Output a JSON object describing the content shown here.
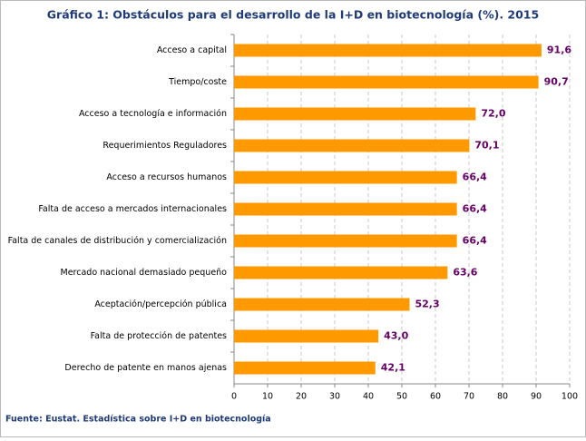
{
  "chart_data": {
    "type": "bar",
    "orientation": "horizontal",
    "title": "Gráfico 1: Obstáculos para el desarrollo de la I+D en biotecnología (%). 2015",
    "categories": [
      "Acceso a capital",
      "Tiempo/coste",
      "Acceso  a tecnología e información",
      "Requerimientos Reguladores",
      "Acceso  a recursos humanos",
      "Falta de acceso a mercados internacionales",
      "Falta de canales de distribución y comercialización",
      "Mercado nacional demasiado pequeño",
      "Aceptación/percepción pública",
      "Falta de protección de patentes",
      "Derecho de patente en manos ajenas"
    ],
    "values": [
      91.6,
      90.7,
      72.0,
      70.1,
      66.4,
      66.4,
      66.4,
      63.6,
      52.3,
      43.0,
      42.1
    ],
    "value_labels": [
      "91,6",
      "90,7",
      "72,0",
      "70,1",
      "66,4",
      "66,4",
      "66,4",
      "63,6",
      "52,3",
      "43,0",
      "42,1"
    ],
    "color": "#ff9900",
    "xlim": [
      0,
      100
    ],
    "xticks": [
      0,
      10,
      20,
      30,
      40,
      50,
      60,
      70,
      80,
      90,
      100
    ],
    "grid": true,
    "source": "Fuente: Eustat. Estadística sobre I+D en biotecnología"
  }
}
